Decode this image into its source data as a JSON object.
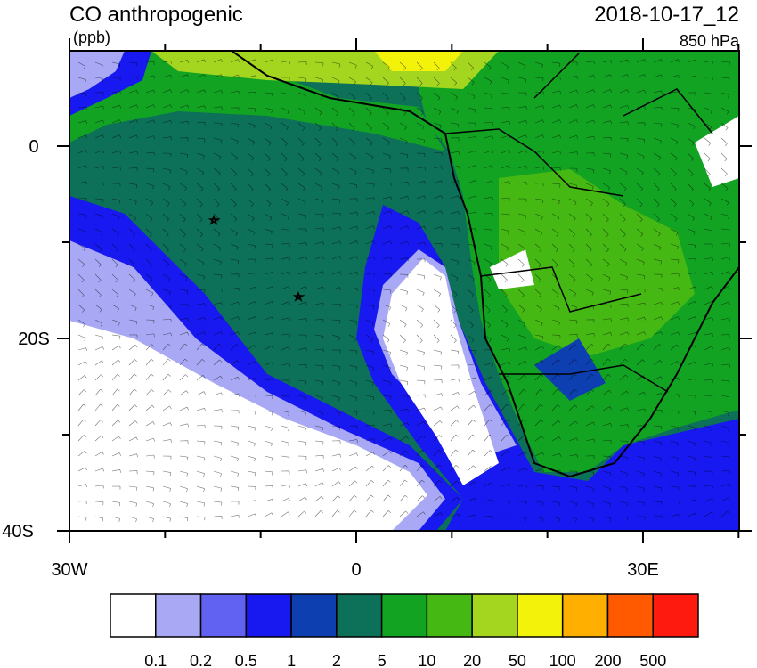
{
  "header": {
    "title": "CO anthropogenic",
    "units": "(ppb)",
    "date": "2018-10-17_12",
    "level": "850 hPa"
  },
  "axes": {
    "y_labels": [
      "0",
      "20S",
      "40S"
    ],
    "x_labels": [
      "30W",
      "0",
      "30E"
    ]
  },
  "colorbar": {
    "colors": [
      "#ffffff",
      "#a8a8f5",
      "#6262f2",
      "#1818f0",
      "#0e3fb0",
      "#0d7058",
      "#13a322",
      "#45b814",
      "#a4d620",
      "#f2f20a",
      "#ffaf00",
      "#ff5a00",
      "#ff1a10"
    ],
    "labels": [
      "0.1",
      "0.2",
      "0.5",
      "1",
      "2",
      "5",
      "10",
      "20",
      "50",
      "100",
      "200",
      "500"
    ]
  }
}
